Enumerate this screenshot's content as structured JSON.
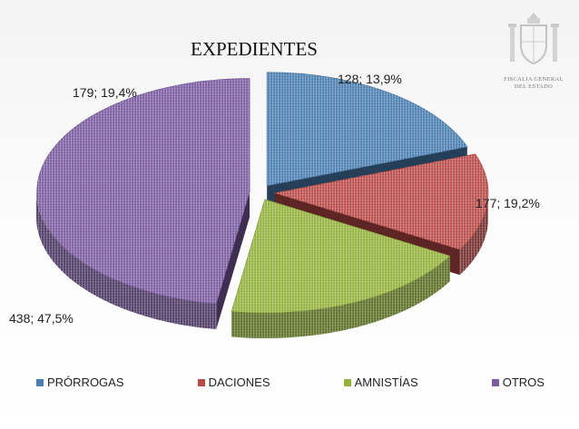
{
  "chart_data": {
    "type": "pie",
    "title": "EXPEDIENTES",
    "categories": [
      "PRÓRROGAS",
      "DACIONES",
      "AMNISTÍAS",
      "OTROS"
    ],
    "values": [
      179,
      128,
      177,
      438
    ],
    "percents": [
      "19,4%",
      "13,9%",
      "19,2%",
      "47,5%"
    ],
    "data_labels": [
      "179; 19,4%",
      "128; 13,9%",
      "177; 19,2%",
      "438; 47,5%"
    ],
    "colors": [
      "#4a7eb0",
      "#b94a48",
      "#93b13c",
      "#7b5ba0"
    ],
    "legend_position": "bottom",
    "exploded": true,
    "three_d": true
  },
  "logo": {
    "text_line1": "FISCALIA GENERAL",
    "text_line2": "DEL ESTADO"
  }
}
